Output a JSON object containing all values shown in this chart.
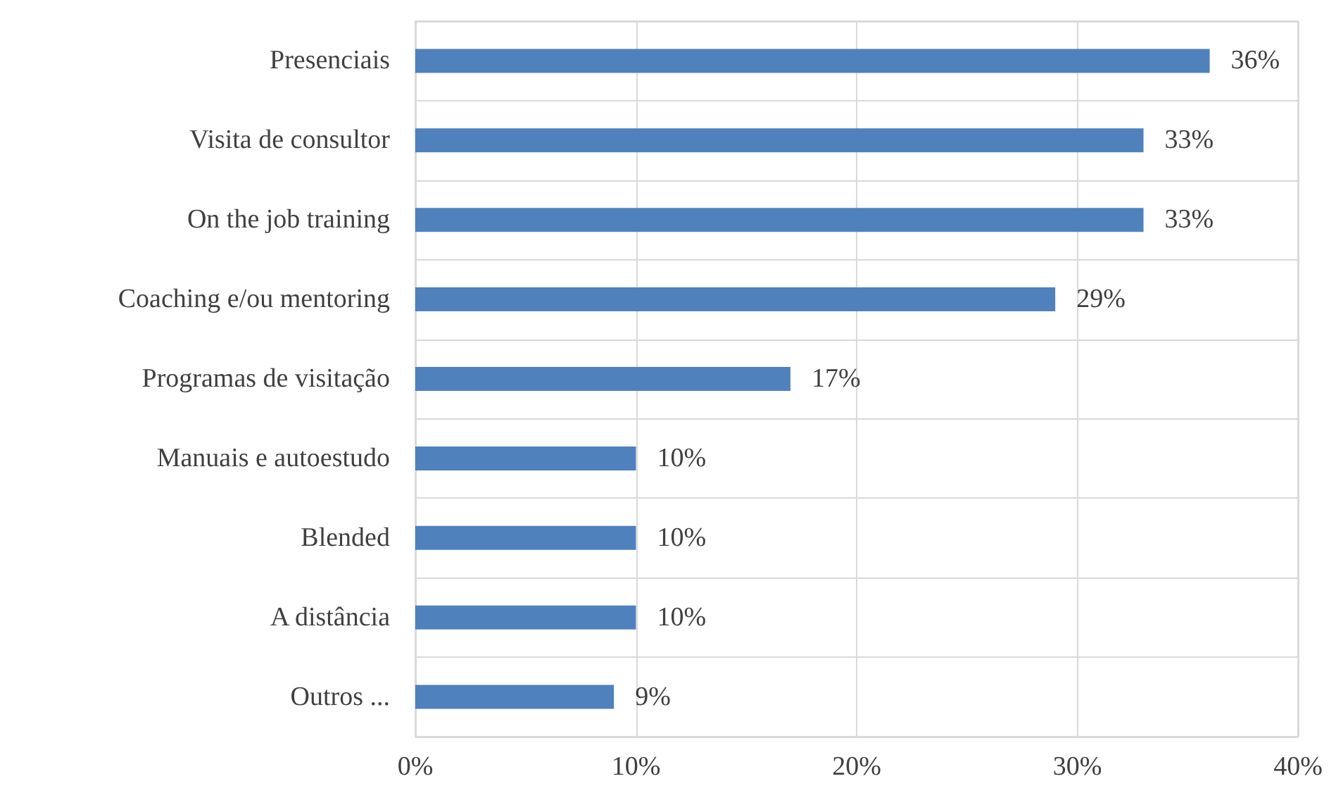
{
  "chart_data": {
    "type": "bar",
    "orientation": "horizontal",
    "categories": [
      "Presenciais",
      "Visita de consultor",
      "On the job training",
      "Coaching e/ou mentoring",
      "Programas de visitação",
      "Manuais e autoestudo",
      "Blended",
      "A distância",
      "Outros ..."
    ],
    "values": [
      36,
      33,
      33,
      29,
      17,
      10,
      10,
      10,
      9
    ],
    "value_labels": [
      "36%",
      "33%",
      "33%",
      "29%",
      "17%",
      "10%",
      "10%",
      "10%",
      "9%"
    ],
    "color": "#4f81bd",
    "xlim": [
      0,
      40
    ],
    "xticks": [
      {
        "value": 0,
        "label": "0%"
      },
      {
        "value": 10,
        "label": "10%"
      },
      {
        "value": 20,
        "label": "20%"
      },
      {
        "value": 30,
        "label": "30%"
      },
      {
        "value": 40,
        "label": "40%"
      }
    ],
    "grid": true
  }
}
